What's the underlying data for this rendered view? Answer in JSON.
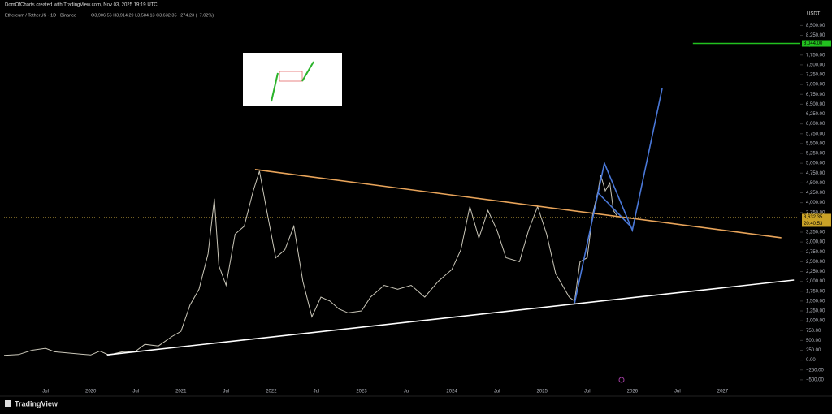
{
  "header": "DomOfCharts created with TradingView.com, Nov 03, 2025 19:19 UTC",
  "symbol": "Ethereum / TetherUS · 1D · Binance",
  "ohlc": "O3,906.56 H3,914.29 L3,584.13 C3,632.35 −274.23 (−7.02%)",
  "currency": "USDT",
  "brand": "TradingView",
  "chart_data": {
    "type": "line",
    "xlim": [
      2019.04,
      2027.86
    ],
    "ylim": [
      -750,
      8900
    ],
    "grid": false,
    "xticks": [
      {
        "value": 2019.5,
        "label": "Jul"
      },
      2020,
      {
        "value": 2020.5,
        "label": "Jul"
      },
      2021,
      {
        "value": 2021.5,
        "label": "Jul"
      },
      2022,
      {
        "value": 2022.5,
        "label": "Jul"
      },
      2023,
      {
        "value": 2023.5,
        "label": "Jul"
      },
      2024,
      {
        "value": 2024.5,
        "label": "Jul"
      },
      2025,
      {
        "value": 2025.5,
        "label": "Jul"
      },
      2026,
      {
        "value": 2026.5,
        "label": "Jul"
      },
      2027
    ],
    "yticks": [
      {
        "value": 8500,
        "label": "8,500.00"
      },
      {
        "value": 8250,
        "label": "8,250.00"
      },
      {
        "value": 8000,
        "label": "8,000.00"
      },
      {
        "value": 7750,
        "label": "7,750.00"
      },
      {
        "value": 7500,
        "label": "7,500.00"
      },
      {
        "value": 7250,
        "label": "7,250.00"
      },
      {
        "value": 7000,
        "label": "7,000.00"
      },
      {
        "value": 6750,
        "label": "6,750.00"
      },
      {
        "value": 6500,
        "label": "6,500.00"
      },
      {
        "value": 6250,
        "label": "6,250.00"
      },
      {
        "value": 6000,
        "label": "6,000.00"
      },
      {
        "value": 5750,
        "label": "5,750.00"
      },
      {
        "value": 5500,
        "label": "5,500.00"
      },
      {
        "value": 5250,
        "label": "5,250.00"
      },
      {
        "value": 5000,
        "label": "5,000.00"
      },
      {
        "value": 4750,
        "label": "4,750.00"
      },
      {
        "value": 4500,
        "label": "4,500.00"
      },
      {
        "value": 4250,
        "label": "4,250.00"
      },
      {
        "value": 4000,
        "label": "4,000.00"
      },
      {
        "value": 3750,
        "label": "3,750.00"
      },
      {
        "value": 3250,
        "label": "3,250.00"
      },
      {
        "value": 3000,
        "label": "3,000.00"
      },
      {
        "value": 2750,
        "label": "2,750.00"
      },
      {
        "value": 2500,
        "label": "2,500.00"
      },
      {
        "value": 2250,
        "label": "2,250.00"
      },
      {
        "value": 2000,
        "label": "2,000.00"
      },
      {
        "value": 1750,
        "label": "1,750.00"
      },
      {
        "value": 1500,
        "label": "1,500.00"
      },
      {
        "value": 1250,
        "label": "1,250.00"
      },
      {
        "value": 1000,
        "label": "1,000.00"
      },
      {
        "value": 750,
        "label": "750.00"
      },
      {
        "value": 500,
        "label": "500.00"
      },
      {
        "value": 250,
        "label": "250.00"
      },
      {
        "value": 0,
        "label": "0.00"
      },
      {
        "value": -250,
        "label": "−250.00"
      },
      {
        "value": -500,
        "label": "−500.00"
      }
    ],
    "last_price": {
      "value": 3632.35,
      "label": "3,632.35"
    },
    "countdown": "20:40:53",
    "series": [
      {
        "color": "#c9c6b8",
        "x": [
          2019.04,
          2019.2,
          2019.35,
          2019.5,
          2019.6,
          2019.75,
          2019.9,
          2020.0,
          2020.1,
          2020.2,
          2020.35,
          2020.5,
          2020.6,
          2020.75,
          2020.9,
          2021.0,
          2021.1,
          2021.2,
          2021.3,
          2021.37,
          2021.42,
          2021.5,
          2021.6,
          2021.7,
          2021.8,
          2021.87,
          2021.95,
          2022.05,
          2022.15,
          2022.25,
          2022.35,
          2022.45,
          2022.55,
          2022.65,
          2022.75,
          2022.85,
          2023.0,
          2023.1,
          2023.25,
          2023.4,
          2023.55,
          2023.7,
          2023.85,
          2024.0,
          2024.1,
          2024.2,
          2024.3,
          2024.4,
          2024.5,
          2024.6,
          2024.75,
          2024.85,
          2024.95,
          2025.05,
          2025.15,
          2025.3,
          2025.36,
          2025.42,
          2025.5,
          2025.56,
          2025.62,
          2025.65,
          2025.7,
          2025.75,
          2025.79,
          2025.84
        ],
        "values": [
          120,
          140,
          250,
          300,
          210,
          180,
          150,
          130,
          230,
          130,
          210,
          230,
          400,
          360,
          600,
          730,
          1400,
          1800,
          2700,
          4100,
          2400,
          1900,
          3200,
          3400,
          4300,
          4800,
          3800,
          2600,
          2800,
          3400,
          2000,
          1100,
          1600,
          1500,
          1300,
          1200,
          1250,
          1600,
          1900,
          1800,
          1900,
          1600,
          2000,
          2300,
          2800,
          3900,
          3100,
          3800,
          3300,
          2600,
          2500,
          3300,
          3900,
          3200,
          2200,
          1600,
          1500,
          2500,
          2600,
          3700,
          4300,
          4700,
          4300,
          4500,
          3800,
          3632
        ]
      },
      {
        "color": "#e8a45a",
        "x": [
          2021.82,
          2027.65
        ],
        "values": [
          4843,
          3107
        ]
      },
      {
        "color": "#ffffff",
        "x": [
          2020.18,
          2027.79
        ],
        "values": [
          132,
          2033
        ]
      },
      {
        "color": "#22c11f",
        "x": [
          2026.67,
          2027.86
        ],
        "values": [
          8044,
          8044
        ],
        "value_labels": [
          null,
          "8,044.00"
        ]
      },
      {
        "color": "#4a78d8",
        "x": [
          2025.36,
          2025.69,
          2026.0,
          2026.33
        ],
        "values": [
          1450,
          5000,
          3300,
          6900
        ]
      },
      {
        "color": "#4a78d8",
        "x": [
          2025.62,
          2025.98
        ],
        "values": [
          4250,
          3400
        ]
      }
    ]
  }
}
